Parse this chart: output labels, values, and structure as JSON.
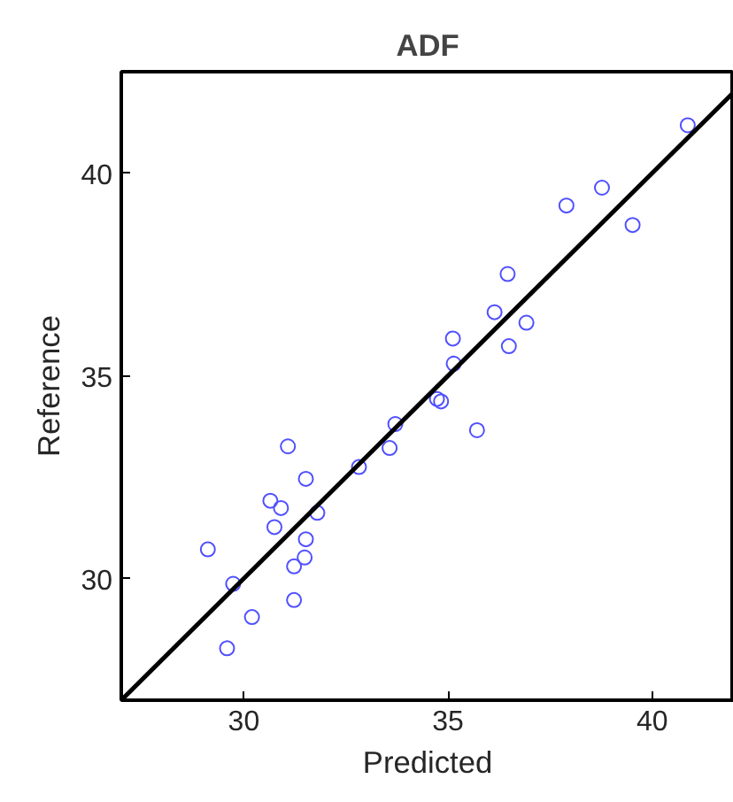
{
  "chart_data": {
    "type": "scatter",
    "title": "ADF",
    "xlabel": "Predicted",
    "ylabel": "Reference",
    "xlim": [
      27,
      42
    ],
    "ylim": [
      27,
      42.5
    ],
    "xticks": [
      30,
      35,
      40
    ],
    "yticks": [
      30,
      35,
      40
    ],
    "grid": false,
    "series": [
      {
        "marker": "circle",
        "color": "#5050ff",
        "x": [
          40.87,
          38.77,
          37.9,
          39.52,
          36.46,
          36.14,
          36.92,
          35.12,
          36.49,
          35.14,
          34.73,
          34.83,
          33.71,
          35.71,
          33.57,
          31.08,
          32.82,
          31.52,
          30.65,
          30.91,
          31.8,
          30.75,
          31.52,
          29.12,
          31.49,
          31.23,
          29.74,
          31.23,
          30.2,
          29.59
        ],
        "values": [
          41.18,
          39.64,
          39.2,
          38.72,
          37.51,
          36.57,
          36.31,
          35.92,
          35.73,
          35.3,
          34.43,
          34.37,
          33.81,
          33.66,
          33.22,
          33.26,
          32.75,
          32.46,
          31.92,
          31.74,
          31.62,
          31.27,
          30.97,
          30.72,
          30.52,
          30.3,
          29.87,
          29.47,
          29.05,
          28.28
        ]
      },
      {
        "type": "line",
        "marker": "none",
        "color": "#000000",
        "x": [
          27,
          42
        ],
        "values": [
          27,
          42
        ]
      }
    ]
  }
}
